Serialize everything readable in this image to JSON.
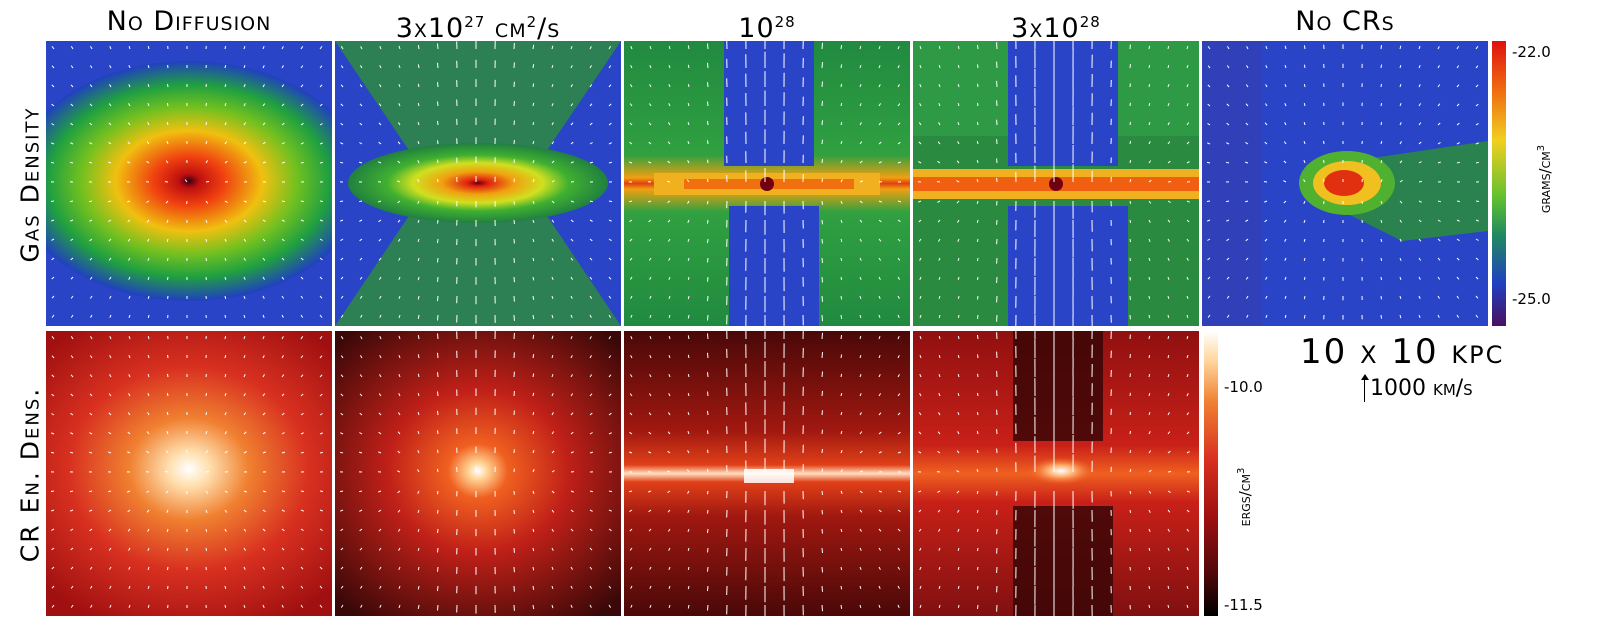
{
  "columns": [
    {
      "label": "No Diffusion"
    },
    {
      "label": "3x10",
      "sup": "27",
      "tail": " cm",
      "sup2": "2",
      "tail2": "/s"
    },
    {
      "label": "10",
      "sup": "28"
    },
    {
      "label": "3x10",
      "sup": "28"
    },
    {
      "label": "No CRs"
    }
  ],
  "rows": [
    {
      "label": "Gas Density"
    },
    {
      "label": "CR En. Dens."
    }
  ],
  "gas_colorbar": {
    "max": "-22.0",
    "min": "-25.0",
    "unit": "grams/cm",
    "unit_sup": "3"
  },
  "cr_colorbar": {
    "max": "-10.0",
    "min": "-11.5",
    "unit": "ergs/cm",
    "unit_sup": "3"
  },
  "scale": {
    "box": "10 x 10 kpc",
    "velocity": "1000 km/s"
  },
  "colors": {
    "background": "#ffffff",
    "arrow": "#ffffff"
  }
}
